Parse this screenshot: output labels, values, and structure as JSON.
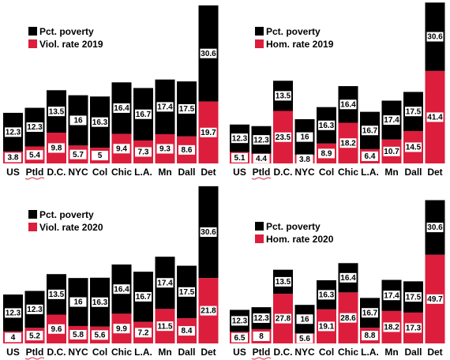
{
  "colors": {
    "poverty": "#000000",
    "rate": "#dc1e3c",
    "label_box": "#ffffff"
  },
  "chart_data": [
    {
      "type": "bar",
      "stacked": true,
      "categories": [
        "US",
        "Ptld",
        "D.C.",
        "NYC",
        "Col",
        "Chic",
        "L.A.",
        "Mn",
        "Dall",
        "Det"
      ],
      "legend_position": "top-left",
      "series": [
        {
          "name": "Pct. poverty",
          "color": "#000000",
          "values": [
            12.3,
            12.3,
            13.5,
            16,
            16.3,
            16.4,
            16.7,
            17.4,
            17.5,
            30.6
          ]
        },
        {
          "name": "Viol. rate 2019",
          "color": "#dc1e3c",
          "values": [
            3.8,
            5.4,
            9.8,
            5.7,
            5,
            9.4,
            7.3,
            9.3,
            8.6,
            19.7
          ]
        }
      ]
    },
    {
      "type": "bar",
      "stacked": true,
      "categories": [
        "US",
        "Ptld",
        "D.C.",
        "NYC",
        "Col",
        "Chic",
        "L.A.",
        "Mn",
        "Dall",
        "Det"
      ],
      "legend_position": "top-left",
      "series": [
        {
          "name": "Pct. poverty",
          "color": "#000000",
          "values": [
            12.3,
            12.3,
            13.5,
            16,
            16.3,
            16.4,
            16.7,
            17.4,
            17.5,
            30.6
          ]
        },
        {
          "name": "Hom. rate 2019",
          "color": "#dc1e3c",
          "values": [
            5.1,
            4.4,
            23.5,
            3.8,
            8.9,
            18.2,
            6.4,
            10.7,
            14.5,
            41.4
          ]
        }
      ]
    },
    {
      "type": "bar",
      "stacked": true,
      "categories": [
        "US",
        "Ptld",
        "D.C.",
        "NYC",
        "Col",
        "Chic",
        "L.A.",
        "Mn",
        "Dall",
        "Det"
      ],
      "legend_position": "top-left",
      "series": [
        {
          "name": "Pct. poverty",
          "color": "#000000",
          "values": [
            12.3,
            12.3,
            13.5,
            16,
            16.3,
            16.4,
            16.7,
            17.4,
            17.5,
            30.6
          ]
        },
        {
          "name": "Viol. rate 2020",
          "color": "#dc1e3c",
          "values": [
            4,
            5.2,
            9.6,
            5.8,
            5.6,
            9.9,
            7.2,
            11.5,
            8.4,
            21.8
          ]
        }
      ]
    },
    {
      "type": "bar",
      "stacked": true,
      "categories": [
        "US",
        "Ptld",
        "D.C.",
        "NYC",
        "Col",
        "Chic",
        "L.A.",
        "Mn",
        "Dall",
        "Det"
      ],
      "legend_position": "top-left",
      "series": [
        {
          "name": "Pct. poverty",
          "color": "#000000",
          "values": [
            12.3,
            12.3,
            13.5,
            16,
            16.3,
            16.4,
            16.7,
            17.4,
            17.5,
            30.6
          ]
        },
        {
          "name": "Hom. rate 2020",
          "color": "#dc1e3c",
          "values": [
            6.5,
            8,
            27.8,
            5.6,
            19.1,
            28.6,
            8.8,
            18.2,
            17.3,
            49.7
          ]
        }
      ]
    }
  ]
}
